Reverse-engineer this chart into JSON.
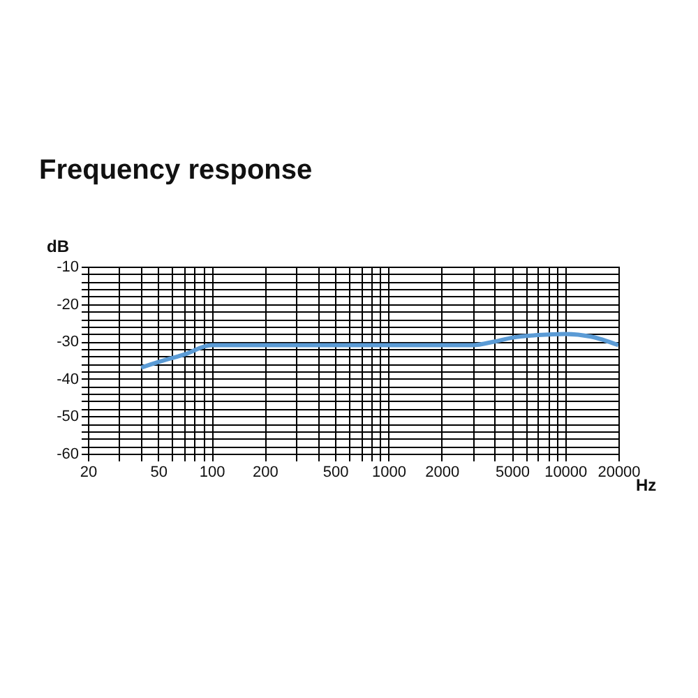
{
  "chart_data": {
    "type": "line",
    "title": "Frequency response",
    "xlabel": "Hz",
    "ylabel": "dB",
    "x": [
      40,
      50,
      70,
      100,
      3000,
      4000,
      5000,
      7000,
      10000,
      14000,
      20000
    ],
    "series": [
      {
        "color": "#5b9bd5",
        "values": [
          -37,
          -35.5,
          -33.5,
          -31,
          -31,
          -30,
          -29,
          -28.3,
          -28,
          -28.7,
          -31
        ]
      }
    ],
    "log": "x",
    "xlim": [
      20,
      20000
    ],
    "ylim": [
      -60,
      -10
    ],
    "xticks": [
      20,
      {
        "value": 30,
        "label": null
      },
      {
        "value": 40,
        "label": null
      },
      50,
      {
        "value": 60,
        "label": null
      },
      {
        "value": 70,
        "label": null
      },
      {
        "value": 80,
        "label": null
      },
      {
        "value": 90,
        "label": null
      },
      100,
      200,
      {
        "value": 300,
        "label": null
      },
      {
        "value": 400,
        "label": null
      },
      500,
      {
        "value": 600,
        "label": null
      },
      {
        "value": 700,
        "label": null
      },
      {
        "value": 800,
        "label": null
      },
      {
        "value": 900,
        "label": null
      },
      1000,
      2000,
      {
        "value": 3000,
        "label": null
      },
      {
        "value": 4000,
        "label": null
      },
      5000,
      {
        "value": 6000,
        "label": null
      },
      {
        "value": 7000,
        "label": null
      },
      {
        "value": 8000,
        "label": null
      },
      {
        "value": 9000,
        "label": null
      },
      10000,
      20000
    ],
    "yticks": [
      -60,
      {
        "value": -58,
        "label": null
      },
      {
        "value": -56,
        "label": null
      },
      {
        "value": -54,
        "label": null
      },
      {
        "value": -52,
        "label": null
      },
      -50,
      {
        "value": -48,
        "label": null
      },
      {
        "value": -46,
        "label": null
      },
      {
        "value": -44,
        "label": null
      },
      {
        "value": -42,
        "label": null
      },
      -40,
      {
        "value": -38,
        "label": null
      },
      {
        "value": -36,
        "label": null
      },
      {
        "value": -34,
        "label": null
      },
      {
        "value": -32,
        "label": null
      },
      -30,
      {
        "value": -28,
        "label": null
      },
      {
        "value": -26,
        "label": null
      },
      {
        "value": -24,
        "label": null
      },
      {
        "value": -22,
        "label": null
      },
      -20,
      {
        "value": -18,
        "label": null
      },
      {
        "value": -16,
        "label": null
      },
      {
        "value": -14,
        "label": null
      },
      {
        "value": -12,
        "label": null
      },
      -10
    ],
    "grid": true,
    "legend": false,
    "marker": "none",
    "line_style": "solid"
  }
}
